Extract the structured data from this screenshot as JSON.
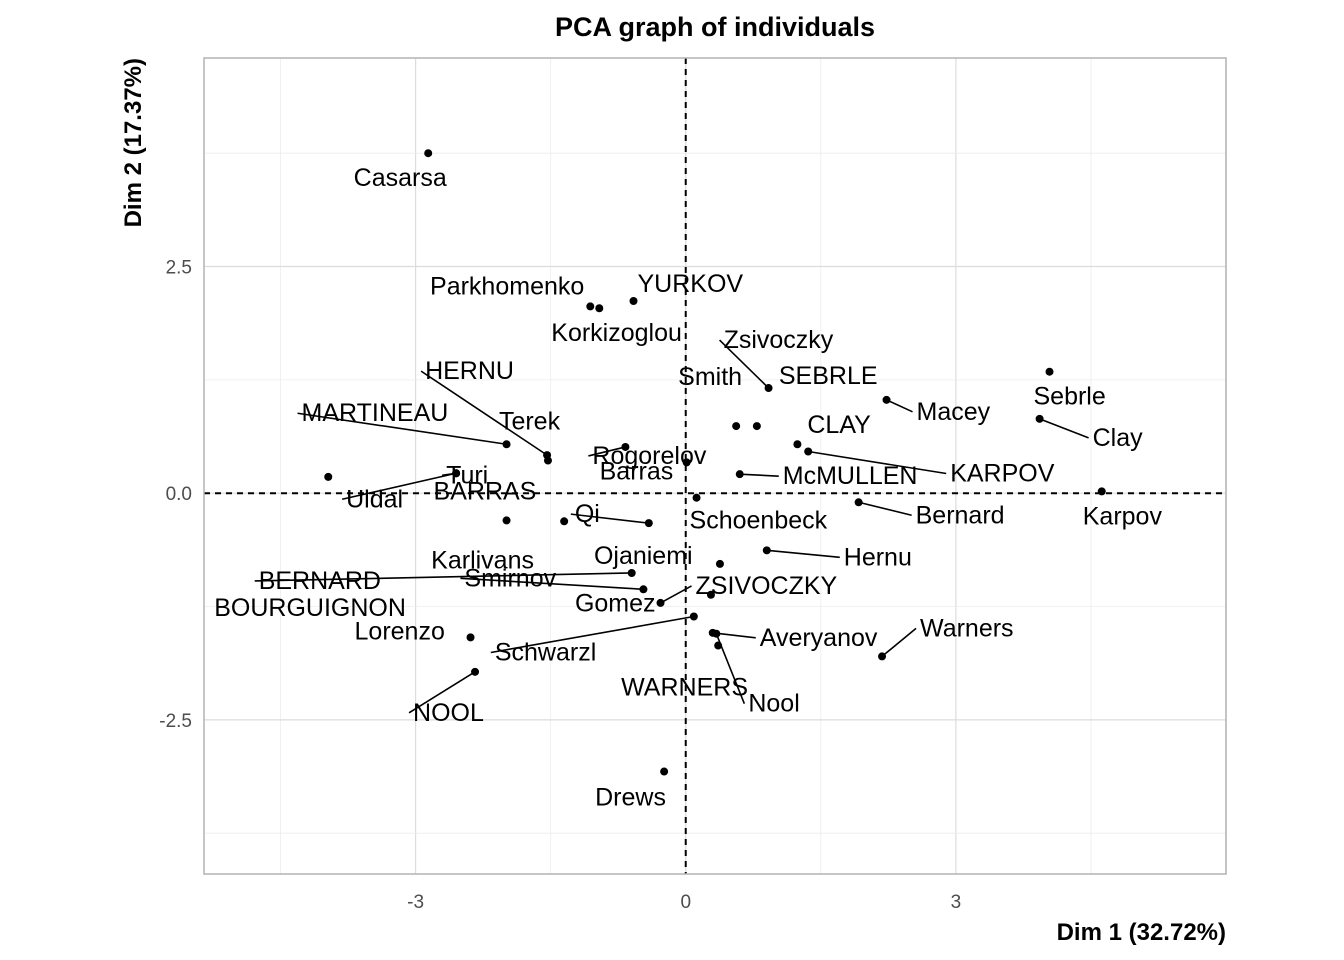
{
  "chart_data": {
    "type": "scatter",
    "title": "PCA graph of individuals",
    "xlabel": "Dim 1 (32.72%)",
    "ylabel": "Dim 2 (17.37%)",
    "xlim": [
      -5.35,
      6.0
    ],
    "ylim": [
      -4.2,
      4.8
    ],
    "xticks": [
      -3,
      0,
      3
    ],
    "xtick_labels": [
      "-3",
      "0",
      "3"
    ],
    "yticks": [
      -2.5,
      0.0,
      2.5
    ],
    "ytick_labels": [
      "-2.5",
      "0.0",
      "2.5"
    ],
    "grid": true,
    "reference_lines": {
      "x": 0,
      "y": 0,
      "style": "dashed"
    },
    "points": [
      {
        "label": "Casarsa",
        "x": -2.86,
        "y": 3.75
      },
      {
        "label": "Parkhomenko",
        "x": -1.06,
        "y": 2.06
      },
      {
        "label": "YURKOV",
        "x": -0.58,
        "y": 2.12
      },
      {
        "label": "Korkizoglou",
        "x": -0.96,
        "y": 2.04
      },
      {
        "label": "Zsivoczky",
        "x": 0.92,
        "y": 1.16
      },
      {
        "label": "Smith",
        "x": 0.56,
        "y": 0.74
      },
      {
        "label": "SEBRLE",
        "x": 0.79,
        "y": 0.74
      },
      {
        "label": "Macey",
        "x": 2.23,
        "y": 1.03
      },
      {
        "label": "Sebrle",
        "x": 4.04,
        "y": 1.34
      },
      {
        "label": "Clay",
        "x": 3.93,
        "y": 0.82
      },
      {
        "label": "HERNU",
        "x": -1.54,
        "y": 0.42
      },
      {
        "label": "MARTINEAU",
        "x": -1.99,
        "y": 0.54
      },
      {
        "label": "Terek",
        "x": -1.53,
        "y": 0.36
      },
      {
        "label": "Rogorelov",
        "x": -0.67,
        "y": 0.51
      },
      {
        "label": "CLAY",
        "x": 1.24,
        "y": 0.54
      },
      {
        "label": "BOURGUIGNON",
        "x": -3.97,
        "y": 0.18
      },
      {
        "label": "Turi",
        "x": -2.55,
        "y": 0.22
      },
      {
        "label": "Barras",
        "x": 0.01,
        "y": 0.34
      },
      {
        "label": "McMULLEN",
        "x": 0.6,
        "y": 0.21
      },
      {
        "label": "KARPOV",
        "x": 1.36,
        "y": 0.46
      },
      {
        "label": "Uldal",
        "x": -2.55,
        "y": 0.22
      },
      {
        "label": "BARRAS",
        "x": -1.99,
        "y": -0.3
      },
      {
        "label": "Karpov",
        "x": 4.62,
        "y": 0.02
      },
      {
        "label": "Qi",
        "x": -0.41,
        "y": -0.33
      },
      {
        "label": "Schoenbeck",
        "x": 0.12,
        "y": -0.05
      },
      {
        "label": "Bernard",
        "x": 1.92,
        "y": -0.1
      },
      {
        "label": "Karlivans",
        "x": -1.35,
        "y": -0.31
      },
      {
        "label": "Ojaniemi",
        "x": 0.38,
        "y": -0.78
      },
      {
        "label": "Hernu",
        "x": 0.9,
        "y": -0.63
      },
      {
        "label": "BERNARD",
        "x": -0.6,
        "y": -0.88
      },
      {
        "label": "Smirnov",
        "x": -0.47,
        "y": -1.06
      },
      {
        "label": "ZSIVOCZKY",
        "x": -0.28,
        "y": -1.21
      },
      {
        "label": "Gomez",
        "x": 0.28,
        "y": -1.12
      },
      {
        "label": "Lorenzo",
        "x": -2.39,
        "y": -1.59
      },
      {
        "label": "Averyanov",
        "x": 0.3,
        "y": -1.54
      },
      {
        "label": "Warners",
        "x": 2.18,
        "y": -1.8
      },
      {
        "label": "Schwarzl",
        "x": 0.09,
        "y": -1.36
      },
      {
        "label": "WARNERS",
        "x": 0.36,
        "y": -1.68
      },
      {
        "label": "Nool",
        "x": 0.34,
        "y": -1.55
      },
      {
        "label": "NOOL",
        "x": -2.34,
        "y": -1.97
      },
      {
        "label": "Drews",
        "x": -0.24,
        "y": -3.07
      }
    ]
  }
}
